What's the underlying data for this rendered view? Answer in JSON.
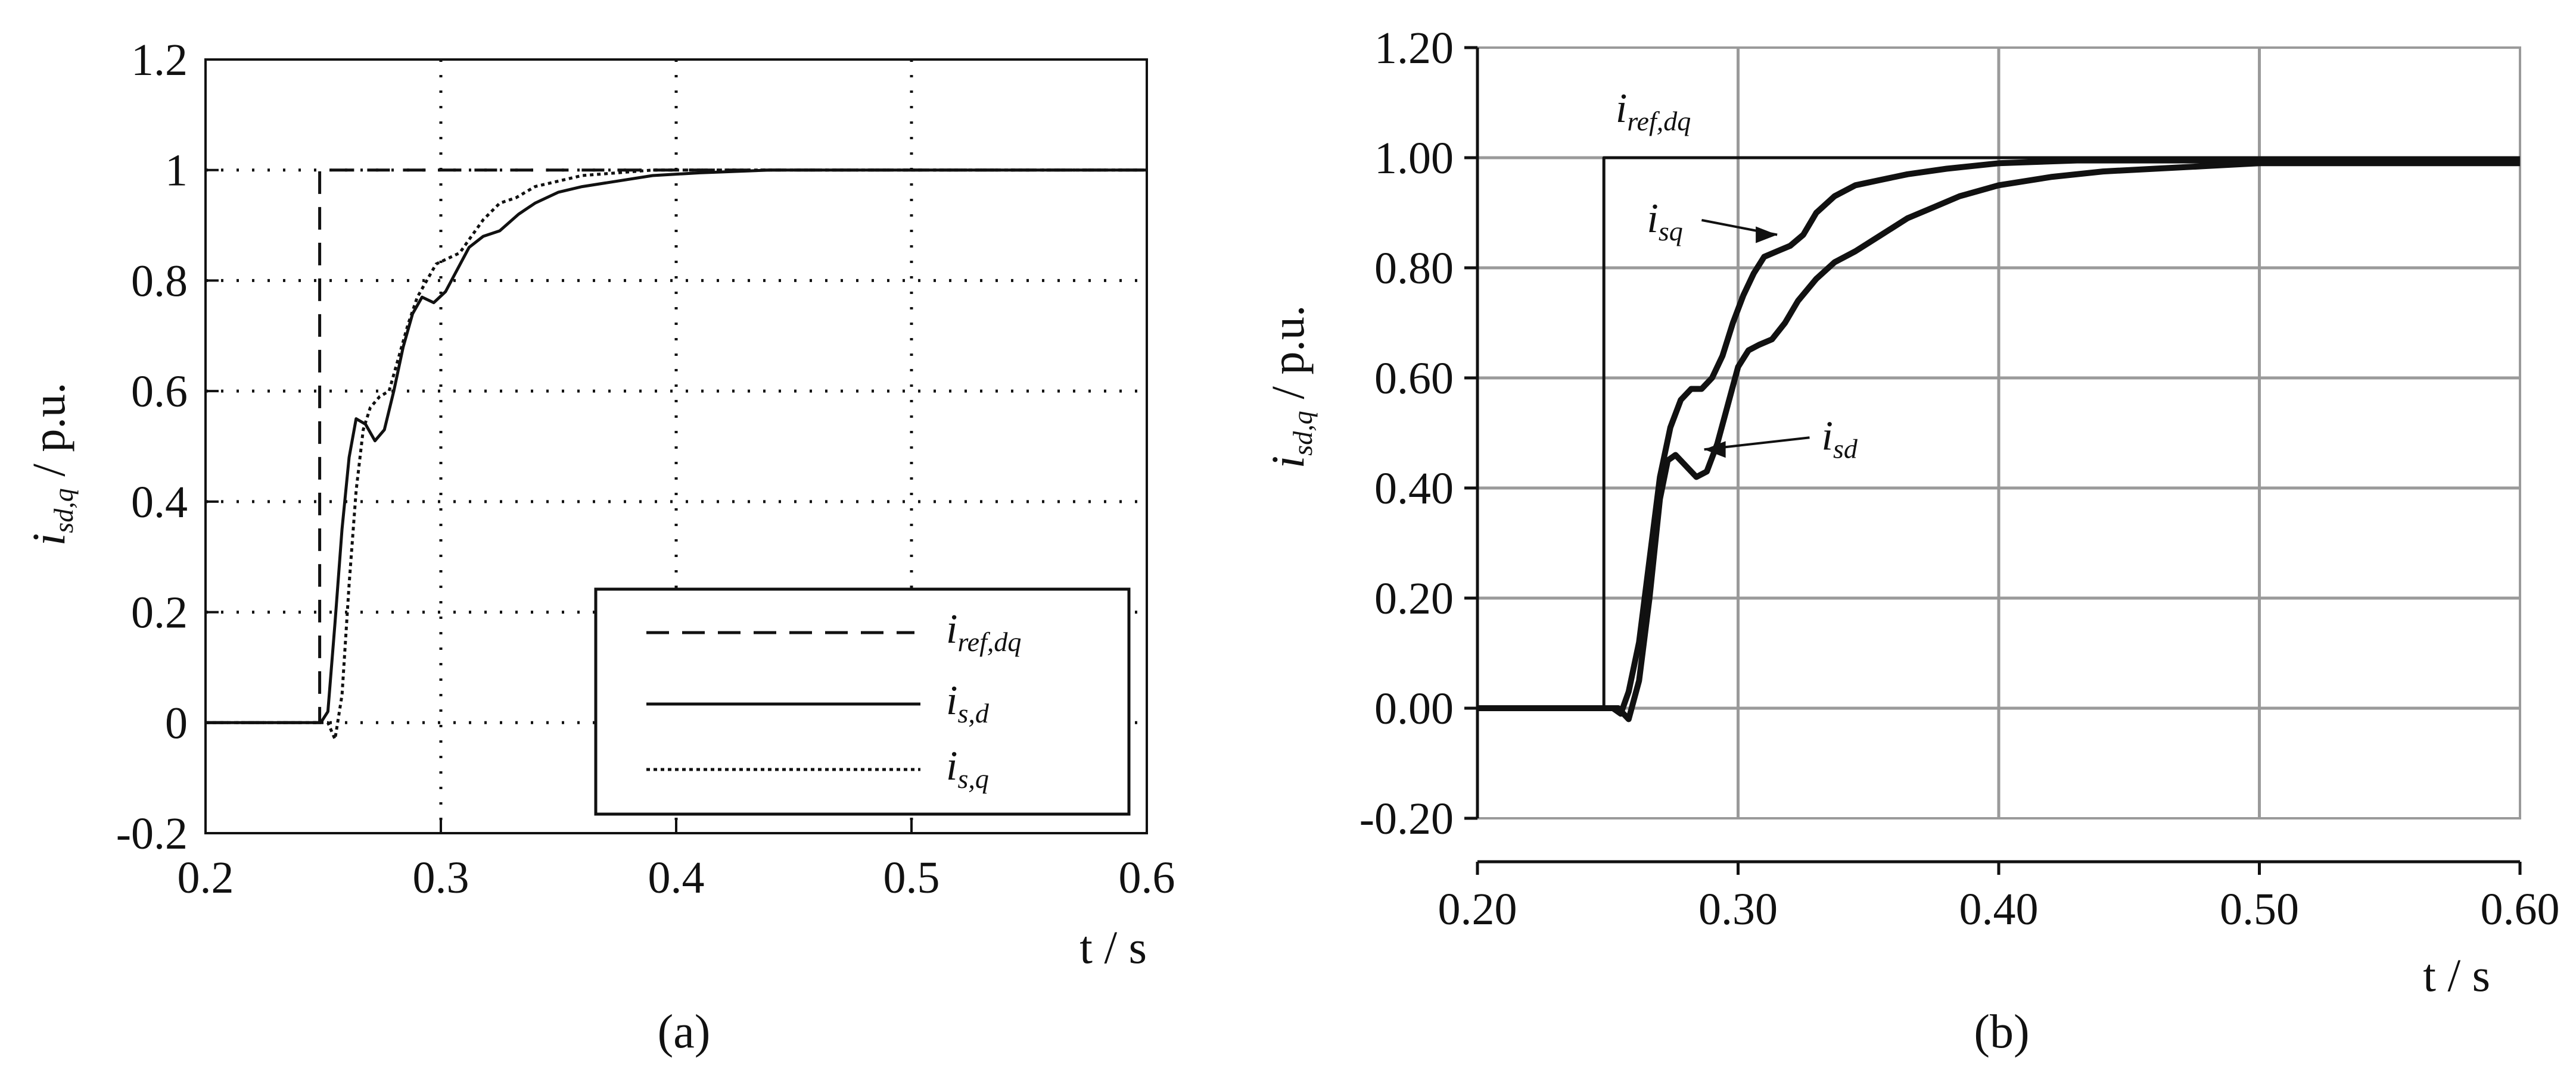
{
  "chart_data": [
    {
      "type": "line",
      "caption": "(a)",
      "xlabel": "t / s",
      "ylabel_main": "i",
      "ylabel_sub": "sd,q",
      "ylabel_unit": " / p.u.",
      "xlim": [
        0.2,
        0.6
      ],
      "ylim": [
        -0.2,
        1.2
      ],
      "x_ticks": [
        "0.2",
        "0.3",
        "0.4",
        "0.5",
        "0.6"
      ],
      "y_ticks": [
        "-0.2",
        "0",
        "0.2",
        "0.4",
        "0.6",
        "0.8",
        "1",
        "1.2"
      ],
      "grid": "dotted",
      "legend_position": "bottom-right",
      "series": [
        {
          "name": "i_ref,dq",
          "label_main": "i",
          "label_sub": "ref,dq",
          "style": "dashed",
          "points": [
            [
              0.2,
              0
            ],
            [
              0.2485,
              0
            ],
            [
              0.2485,
              1
            ],
            [
              0.6,
              1
            ]
          ]
        },
        {
          "name": "i_s,d",
          "label_main": "i",
          "label_sub": "s,d",
          "style": "solid",
          "points": [
            [
              0.2,
              0
            ],
            [
              0.249,
              0
            ],
            [
              0.252,
              0.02
            ],
            [
              0.255,
              0.18
            ],
            [
              0.258,
              0.35
            ],
            [
              0.261,
              0.48
            ],
            [
              0.264,
              0.55
            ],
            [
              0.268,
              0.54
            ],
            [
              0.272,
              0.51
            ],
            [
              0.276,
              0.53
            ],
            [
              0.28,
              0.6
            ],
            [
              0.284,
              0.68
            ],
            [
              0.288,
              0.74
            ],
            [
              0.292,
              0.77
            ],
            [
              0.297,
              0.76
            ],
            [
              0.302,
              0.78
            ],
            [
              0.307,
              0.82
            ],
            [
              0.312,
              0.86
            ],
            [
              0.318,
              0.88
            ],
            [
              0.325,
              0.89
            ],
            [
              0.333,
              0.92
            ],
            [
              0.34,
              0.94
            ],
            [
              0.35,
              0.96
            ],
            [
              0.36,
              0.97
            ],
            [
              0.375,
              0.98
            ],
            [
              0.39,
              0.99
            ],
            [
              0.41,
              0.995
            ],
            [
              0.44,
              1
            ],
            [
              0.6,
              1
            ]
          ]
        },
        {
          "name": "i_s,q",
          "label_main": "i",
          "label_sub": "s,q",
          "style": "dotted",
          "points": [
            [
              0.2,
              0
            ],
            [
              0.252,
              0
            ],
            [
              0.255,
              -0.03
            ],
            [
              0.258,
              0.05
            ],
            [
              0.261,
              0.25
            ],
            [
              0.264,
              0.42
            ],
            [
              0.267,
              0.53
            ],
            [
              0.27,
              0.57
            ],
            [
              0.274,
              0.59
            ],
            [
              0.278,
              0.6
            ],
            [
              0.282,
              0.66
            ],
            [
              0.286,
              0.72
            ],
            [
              0.29,
              0.77
            ],
            [
              0.294,
              0.8
            ],
            [
              0.298,
              0.83
            ],
            [
              0.303,
              0.84
            ],
            [
              0.308,
              0.85
            ],
            [
              0.313,
              0.88
            ],
            [
              0.318,
              0.91
            ],
            [
              0.325,
              0.94
            ],
            [
              0.332,
              0.95
            ],
            [
              0.34,
              0.97
            ],
            [
              0.35,
              0.98
            ],
            [
              0.36,
              0.99
            ],
            [
              0.375,
              0.995
            ],
            [
              0.39,
              1
            ],
            [
              0.6,
              1
            ]
          ]
        }
      ]
    },
    {
      "type": "line",
      "caption": "(b)",
      "xlabel": "t / s",
      "ylabel_main": "i",
      "ylabel_sub": "sd,q",
      "ylabel_unit": " / p.u.",
      "xlim": [
        0.2,
        0.6
      ],
      "ylim": [
        -0.2,
        1.2
      ],
      "x_ticks": [
        "0.20",
        "0.30",
        "0.40",
        "0.50",
        "0.60"
      ],
      "y_ticks": [
        "-0.20",
        "0.00",
        "0.20",
        "0.40",
        "0.60",
        "0.80",
        "1.00",
        "1.20"
      ],
      "grid": "solid",
      "grid_color": "#9a9a9a",
      "annotations": [
        {
          "main": "i",
          "sub": "ref,dq",
          "arrow": false,
          "text_x": 0.253,
          "text_y": 1.065
        },
        {
          "main": "i",
          "sub": "sq",
          "arrow": true,
          "text_x": 0.265,
          "text_y": 0.865,
          "arrow_x": 0.315,
          "arrow_y": 0.86
        },
        {
          "main": "i",
          "sub": "sd",
          "arrow": true,
          "text_x": 0.332,
          "text_y": 0.47,
          "arrow_x": 0.287,
          "arrow_y": 0.47
        }
      ],
      "series": [
        {
          "name": "i_ref,dq",
          "style": "thin",
          "points": [
            [
              0.2,
              0
            ],
            [
              0.2485,
              0
            ],
            [
              0.2485,
              1
            ],
            [
              0.6,
              1
            ]
          ]
        },
        {
          "name": "i_sq",
          "style": "thick",
          "points": [
            [
              0.2,
              0
            ],
            [
              0.252,
              0
            ],
            [
              0.255,
              -0.01
            ],
            [
              0.258,
              0.03
            ],
            [
              0.262,
              0.12
            ],
            [
              0.266,
              0.27
            ],
            [
              0.27,
              0.42
            ],
            [
              0.274,
              0.51
            ],
            [
              0.278,
              0.56
            ],
            [
              0.282,
              0.58
            ],
            [
              0.286,
              0.58
            ],
            [
              0.29,
              0.6
            ],
            [
              0.294,
              0.64
            ],
            [
              0.298,
              0.7
            ],
            [
              0.302,
              0.75
            ],
            [
              0.306,
              0.79
            ],
            [
              0.31,
              0.82
            ],
            [
              0.315,
              0.83
            ],
            [
              0.32,
              0.84
            ],
            [
              0.325,
              0.86
            ],
            [
              0.33,
              0.9
            ],
            [
              0.337,
              0.93
            ],
            [
              0.345,
              0.95
            ],
            [
              0.355,
              0.96
            ],
            [
              0.365,
              0.97
            ],
            [
              0.38,
              0.98
            ],
            [
              0.4,
              0.99
            ],
            [
              0.43,
              0.995
            ],
            [
              0.6,
              0.995
            ]
          ]
        },
        {
          "name": "i_sd",
          "style": "thick",
          "points": [
            [
              0.2,
              0
            ],
            [
              0.254,
              0
            ],
            [
              0.258,
              -0.02
            ],
            [
              0.262,
              0.05
            ],
            [
              0.266,
              0.2
            ],
            [
              0.27,
              0.38
            ],
            [
              0.273,
              0.45
            ],
            [
              0.276,
              0.46
            ],
            [
              0.28,
              0.44
            ],
            [
              0.284,
              0.42
            ],
            [
              0.288,
              0.43
            ],
            [
              0.292,
              0.48
            ],
            [
              0.296,
              0.55
            ],
            [
              0.3,
              0.62
            ],
            [
              0.304,
              0.65
            ],
            [
              0.308,
              0.66
            ],
            [
              0.313,
              0.67
            ],
            [
              0.318,
              0.7
            ],
            [
              0.323,
              0.74
            ],
            [
              0.33,
              0.78
            ],
            [
              0.337,
              0.81
            ],
            [
              0.345,
              0.83
            ],
            [
              0.355,
              0.86
            ],
            [
              0.365,
              0.89
            ],
            [
              0.375,
              0.91
            ],
            [
              0.385,
              0.93
            ],
            [
              0.4,
              0.95
            ],
            [
              0.42,
              0.965
            ],
            [
              0.44,
              0.975
            ],
            [
              0.46,
              0.98
            ],
            [
              0.48,
              0.985
            ],
            [
              0.5,
              0.99
            ],
            [
              0.6,
              0.99
            ]
          ]
        }
      ]
    }
  ]
}
